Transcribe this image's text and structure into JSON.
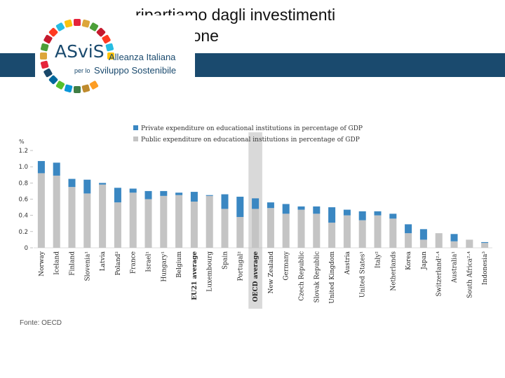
{
  "slide": {
    "title_line1": "…ripartiamo dagli investimenti",
    "title_line2": "in educazione",
    "source": "Fonte: OECD"
  },
  "logo": {
    "brand": "ASviS",
    "line1": "Alleanza Italiana",
    "line2_prefix": "per lo",
    "line2": "Sviluppo Sostenibile"
  },
  "colors": {
    "banner": "#1a4a6e",
    "private": "#3a87c2",
    "public": "#c4c4c4",
    "highlight": "#d9d9d9"
  },
  "chart_data": {
    "type": "bar",
    "stacked": true,
    "ylabel": "%",
    "ylim": [
      0,
      1.2
    ],
    "yticks": [
      "0",
      "0.2",
      "0.4",
      "0.6",
      "0.8",
      "1.0",
      "1.2"
    ],
    "legend": [
      "Private expenditure on educational institutions in percentage of GDP",
      "Public expenditure on educational institutions in percentage of GDP"
    ],
    "highlight_category": "OECD average",
    "categories": [
      "Norway",
      "Iceland",
      "Finland",
      "Slovenia¹",
      "Latvia",
      "Poland²",
      "France",
      "Israel¹",
      "Hungary¹",
      "Belgium",
      "EU21 average",
      "Luxembourg",
      "Spain",
      "Portugal²",
      "OECD average",
      "New Zealand",
      "Germany",
      "Czech Republic",
      "Slovak Republic",
      "United Kingdom",
      "Austria",
      "United States¹",
      "Italy²",
      "Netherlands",
      "Korea",
      "Japan",
      "Switzerland²·⁴",
      "Australia¹",
      "South Africa²·⁴",
      "Indonesia³"
    ],
    "bold_categories": [
      "EU21 average",
      "OECD average"
    ],
    "series": [
      {
        "name": "Public expenditure on educational institutions in percentage of GDP",
        "values": [
          0.92,
          0.89,
          0.75,
          0.67,
          0.78,
          0.56,
          0.68,
          0.6,
          0.64,
          0.65,
          0.57,
          0.64,
          0.48,
          0.38,
          0.48,
          0.49,
          0.42,
          0.47,
          0.42,
          0.31,
          0.4,
          0.34,
          0.4,
          0.36,
          0.18,
          0.1,
          0.18,
          0.08,
          0.1,
          0.06
        ]
      },
      {
        "name": "Private expenditure on educational institutions in percentage of GDP",
        "values": [
          0.15,
          0.16,
          0.1,
          0.17,
          0.02,
          0.18,
          0.05,
          0.1,
          0.06,
          0.03,
          0.12,
          0.01,
          0.18,
          0.25,
          0.13,
          0.07,
          0.12,
          0.04,
          0.09,
          0.19,
          0.07,
          0.11,
          0.05,
          0.06,
          0.11,
          0.13,
          0.0,
          0.09,
          0.0,
          0.01
        ]
      }
    ]
  }
}
